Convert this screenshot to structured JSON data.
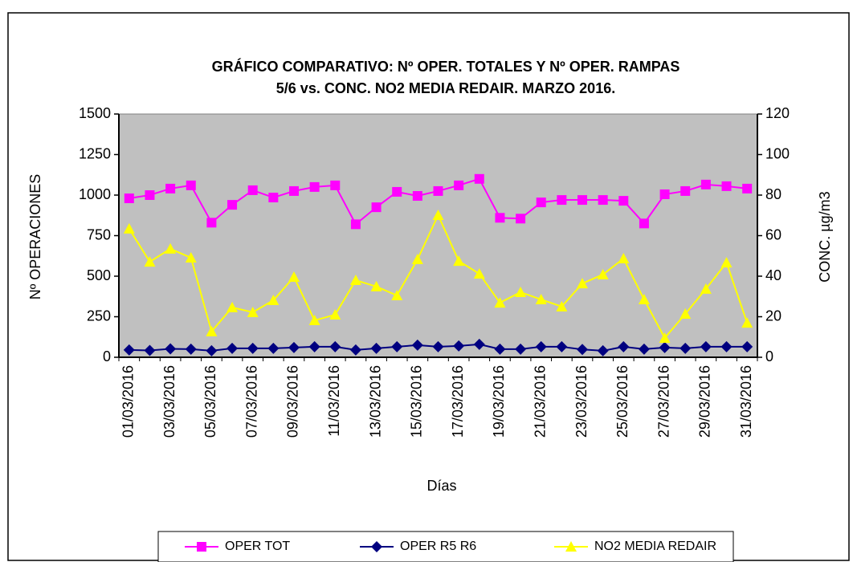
{
  "chart_data": {
    "type": "line",
    "title": [
      "GRÁFICO COMPARATIVO:  Nº OPER. TOTALES Y Nº OPER. RAMPAS",
      "5/6 vs. CONC. NO2 MEDIA REDAIR. MARZO 2016."
    ],
    "x_label": "Días",
    "y_label": "Nº OPERACIONES",
    "y2_label": "CONC.  µg/m3",
    "categories": [
      "01/03/2016",
      null,
      "03/03/2016",
      null,
      "05/03/2016",
      null,
      "07/03/2016",
      null,
      "09/03/2016",
      null,
      "11/03/2016",
      null,
      "13/03/2016",
      null,
      "15/03/2016",
      null,
      "17/03/2016",
      null,
      "19/03/2016",
      null,
      "21/03/2016",
      null,
      "23/03/2016",
      null,
      "25/03/2016",
      null,
      "27/03/2016",
      null,
      "29/03/2016",
      null,
      "31/03/2016"
    ],
    "ylim": [
      0,
      1500
    ],
    "yticks": [
      0,
      250,
      500,
      750,
      1000,
      1250,
      1500
    ],
    "y2lim": [
      0,
      120
    ],
    "y2ticks": [
      0,
      20,
      40,
      60,
      80,
      100,
      120
    ],
    "plot_background": "#c0c0c0",
    "grid": false,
    "series": [
      {
        "name": "OPER TOT",
        "color": "#ff00ff",
        "marker": "square",
        "values": [
          980,
          1000,
          1040,
          1060,
          830,
          940,
          1030,
          985,
          1025,
          1050,
          1060,
          820,
          925,
          1020,
          995,
          1025,
          1060,
          1100,
          860,
          855,
          955,
          970,
          970,
          970,
          965,
          825,
          1005,
          1025,
          1065,
          1055,
          1040
        ]
      },
      {
        "name": "OPER R5 R6",
        "color": "#000080",
        "marker": "diamond",
        "values": [
          45,
          42,
          52,
          50,
          40,
          55,
          55,
          55,
          60,
          65,
          65,
          45,
          55,
          65,
          75,
          65,
          70,
          80,
          50,
          50,
          65,
          65,
          48,
          40,
          65,
          50,
          60,
          55,
          65,
          65,
          65
        ]
      },
      {
        "name": "NO2 MEDIA  REDAIR",
        "color": "#ffff00",
        "marker": "triangle",
        "axis": "y2",
        "values": [
          63.4,
          47.1,
          53.5,
          49.1,
          12.7,
          24.6,
          22.2,
          28.1,
          39.6,
          18.2,
          21,
          38,
          34.9,
          30.5,
          48.3,
          70.1,
          47.5,
          41.2,
          26.9,
          32.1,
          28.5,
          25,
          36.4,
          40.8,
          48.7,
          28.5,
          9.5,
          21.4,
          33.7,
          46.7,
          17
        ]
      }
    ]
  }
}
